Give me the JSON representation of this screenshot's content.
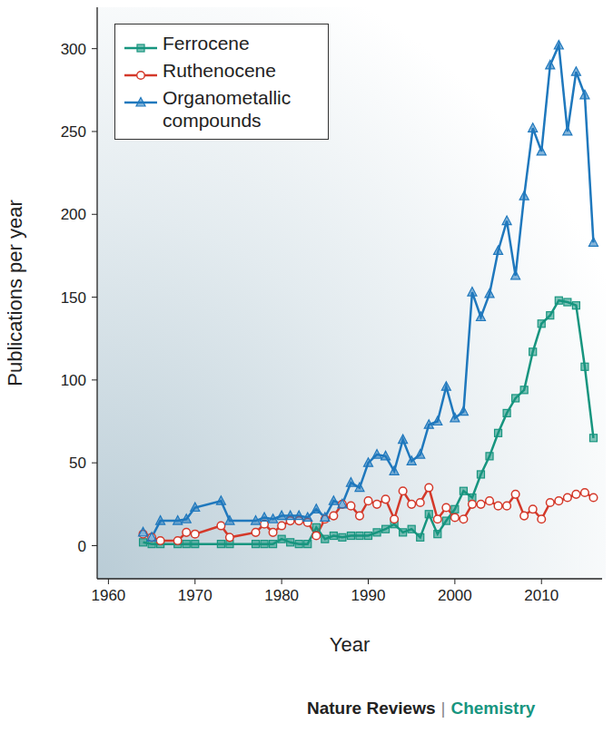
{
  "chart_data": {
    "type": "line",
    "x_label": "Year",
    "y_label": "Publications per year",
    "annotations": [
      "Nature Reviews",
      "|",
      "Chemistry"
    ],
    "x": [
      1964,
      1965,
      1966,
      1968,
      1969,
      1970,
      1973,
      1974,
      1977,
      1978,
      1979,
      1980,
      1981,
      1982,
      1983,
      1984,
      1985,
      1986,
      1987,
      1988,
      1989,
      1990,
      1991,
      1992,
      1993,
      1994,
      1995,
      1996,
      1997,
      1998,
      1999,
      2000,
      2001,
      2002,
      2003,
      2004,
      2005,
      2006,
      2007,
      2008,
      2009,
      2010,
      2011,
      2012,
      2013,
      2014,
      2015,
      2016
    ],
    "series": [
      {
        "name": "Ferrocene",
        "color": "#17957f",
        "marker": "square",
        "values": [
          2,
          1,
          1,
          1,
          1,
          1,
          1,
          1,
          1,
          1,
          1,
          4,
          2,
          1,
          1,
          11,
          4,
          6,
          5,
          6,
          6,
          6,
          8,
          10,
          13,
          8,
          10,
          5,
          19,
          7,
          15,
          22,
          33,
          29,
          43,
          54,
          68,
          80,
          89,
          94,
          117,
          134,
          139,
          148,
          147,
          145,
          108,
          65
        ]
      },
      {
        "name": "Ruthenocene",
        "color": "#d4392a",
        "marker": "circle",
        "values": [
          7,
          5,
          3,
          3,
          8,
          7,
          12,
          5,
          8,
          13,
          8,
          12,
          15,
          15,
          14,
          6,
          16,
          18,
          25,
          24,
          18,
          27,
          25,
          28,
          16,
          33,
          25,
          26,
          35,
          16,
          23,
          17,
          16,
          25,
          25,
          27,
          24,
          24,
          31,
          18,
          22,
          16,
          26,
          27,
          29,
          31,
          32,
          29
        ]
      },
      {
        "name": "Organometallic compounds",
        "color": "#1f78bd",
        "marker": "triangle",
        "values": [
          8,
          5,
          15,
          15,
          16,
          23,
          27,
          15,
          15,
          17,
          16,
          18,
          18,
          18,
          17,
          22,
          17,
          27,
          25,
          38,
          35,
          50,
          55,
          54,
          45,
          64,
          51,
          55,
          73,
          75,
          96,
          77,
          81,
          153,
          138,
          152,
          178,
          196,
          163,
          211,
          252,
          238,
          290,
          302,
          250,
          286,
          272,
          183
        ]
      }
    ],
    "xlim": [
      1958.7,
      2017
    ],
    "xticks": [
      1960,
      1970,
      1980,
      1990,
      2000,
      2010
    ],
    "ylim": [
      -20,
      325
    ],
    "yticks": [
      0,
      50,
      100,
      150,
      200,
      250,
      300
    ],
    "legend": "upper left",
    "grid": false
  }
}
